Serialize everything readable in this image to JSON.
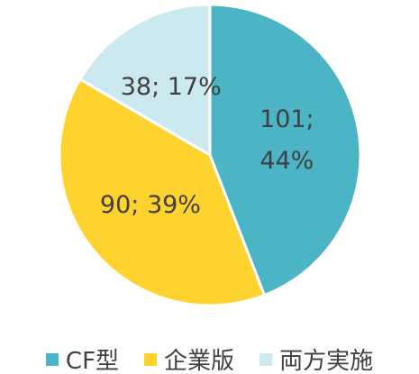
{
  "chart_data": {
    "type": "pie",
    "categories": [
      "CF型",
      "企業版",
      "両方実施"
    ],
    "values": [
      101,
      90,
      38
    ],
    "value_labels": [
      "101; 44%",
      "90; 39%",
      "38; 17%"
    ],
    "colors": [
      "#4bb4c5",
      "#fed22f",
      "#cce9f0"
    ],
    "legend": "bottom"
  }
}
